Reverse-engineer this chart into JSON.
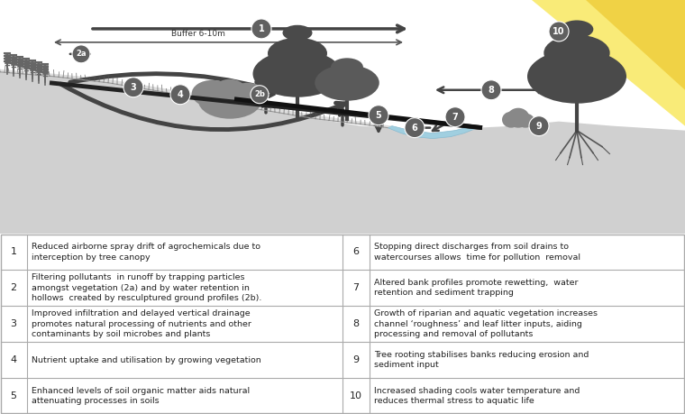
{
  "bg_color": "#ffffff",
  "table_bg": "#ffffff",
  "border_color": "#bbbbbb",
  "table_rows": [
    {
      "num": "1",
      "left_text": "Reduced airborne spray drift of agrochemicals due to\ninterception by tree canopy",
      "right_num": "6",
      "right_text": "Stopping direct discharges from soil drains to\nwatercourses allows  time for pollution  removal"
    },
    {
      "num": "2",
      "left_text": "Filtering pollutants  in runoff by trapping particles\namongst vegetation (2a) and by water retention in\nhollows  created by resculptured ground profiles (2b).",
      "right_num": "7",
      "right_text": "Altered bank profiles promote rewetting,  water\nretention and sediment trapping"
    },
    {
      "num": "3",
      "left_text": "Improved infiltration and delayed vertical drainage\npromotes natural processing of nutrients and other\ncontaminants by soil microbes and plants",
      "right_num": "8",
      "right_text": "Growth of riparian and aquatic vegetation increases\nchannel ‘roughness’ and leaf litter inputs, aiding\nprocessing and removal of pollutants"
    },
    {
      "num": "4",
      "left_text": "Nutrient uptake and utilisation by growing vegetation",
      "right_num": "9",
      "right_text": "Tree rooting stabilises banks reducing erosion and\nsediment input"
    },
    {
      "num": "5",
      "left_text": "Enhanced levels of soil organic matter aids natural\nattenuating processes in soils",
      "right_num": "10",
      "right_text": "Increased shading cools water temperature and\nreduces thermal stress to aquatic life"
    }
  ],
  "buffer_label": "Buffer 6-10m",
  "arrow_dark": "#555555",
  "arrow_thick": "#444444",
  "ground_light": "#d8d8d8",
  "ground_mid": "#c0c0c0",
  "water_fill": "#a8d4e8",
  "sun_yellow": "#f0d050",
  "sun_light": "#f8e878",
  "tree_dark": "#4a4a4a",
  "tree_mid": "#666666",
  "tree_light": "#888888",
  "wheat_color": "#666666",
  "circle_bg": "#666666",
  "circle_text": "#ffffff"
}
